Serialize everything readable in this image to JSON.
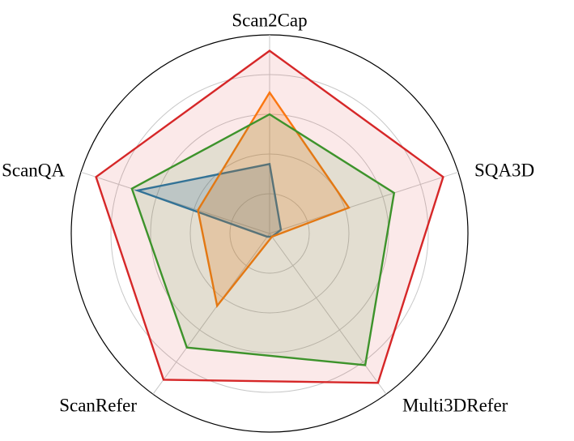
{
  "chart_data": {
    "type": "radar",
    "title": "",
    "axes": [
      "Scan2Cap",
      "SQA3D",
      "Multi3DRefer",
      "ScanRefer",
      "ScanQA"
    ],
    "range": [
      0,
      1
    ],
    "grid_rings": [
      0.2,
      0.4,
      0.6,
      0.8,
      1.0
    ],
    "legend": "none",
    "series": [
      {
        "color": "#1f77b4",
        "values": [
          0.35,
          0.06,
          0.02,
          0.02,
          0.7
        ],
        "fill_opacity": 0.22
      },
      {
        "color": "#ff7f0e",
        "values": [
          0.71,
          0.42,
          0.02,
          0.45,
          0.38
        ],
        "fill_opacity": 0.22
      },
      {
        "color": "#2ca02c",
        "values": [
          0.6,
          0.66,
          0.82,
          0.71,
          0.73
        ],
        "fill_opacity": 0.12
      },
      {
        "color": "#d62728",
        "values": [
          0.92,
          0.92,
          0.93,
          0.91,
          0.92
        ],
        "fill_opacity": 0.1
      }
    ]
  }
}
